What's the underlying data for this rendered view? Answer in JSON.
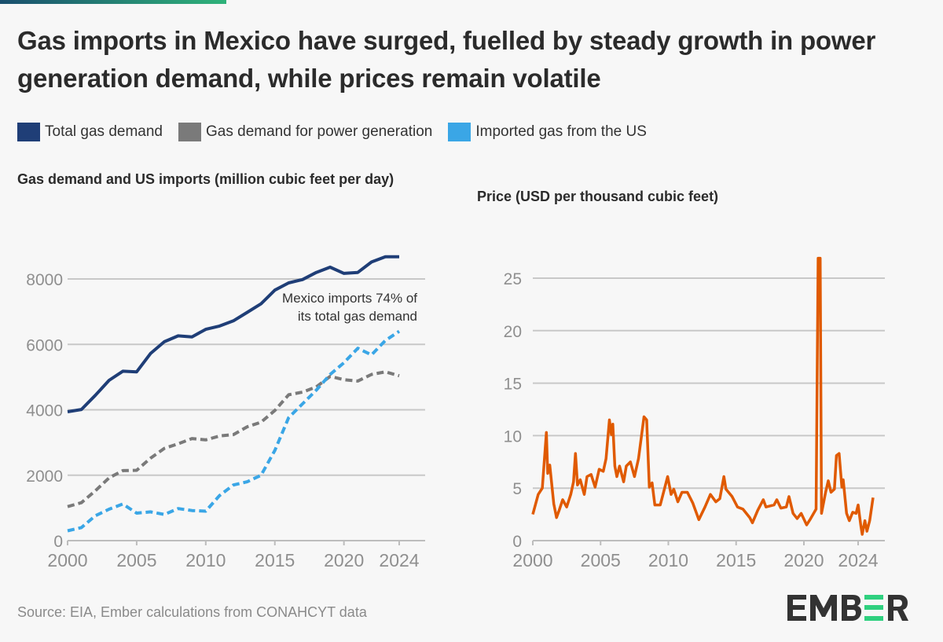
{
  "title": "Gas imports in Mexico have surged, fuelled by steady growth in power generation demand, while prices remain volatile",
  "legend": [
    {
      "label": "Total gas demand",
      "color": "#1f3e77"
    },
    {
      "label": "Gas demand for power generation",
      "color": "#7a7a7a"
    },
    {
      "label": "Imported gas from the US",
      "color": "#3aa6e6"
    }
  ],
  "source": "Source: EIA, Ember calculations from CONAHCYT data",
  "logo": "EMBER",
  "chart_data": [
    {
      "type": "line",
      "title": "Gas demand and US imports (million cubic feet per day)",
      "x": [
        2000,
        2001,
        2002,
        2003,
        2004,
        2005,
        2006,
        2007,
        2008,
        2009,
        2010,
        2011,
        2012,
        2013,
        2014,
        2015,
        2016,
        2017,
        2018,
        2019,
        2020,
        2021,
        2022,
        2023,
        2024
      ],
      "xticks": [
        "2000",
        "2005",
        "2010",
        "2015",
        "2020",
        "2024"
      ],
      "xtick_values": [
        2000,
        2005,
        2010,
        2015,
        2020,
        2024
      ],
      "yticks": [
        "0",
        "2000",
        "4000",
        "6000",
        "8000"
      ],
      "ytick_values": [
        0,
        2000,
        4000,
        6000,
        8000
      ],
      "ylim": [
        0,
        8800
      ],
      "xlim": [
        2000,
        2025.3
      ],
      "grid": true,
      "series": [
        {
          "name": "Total gas demand",
          "color": "#1f3e77",
          "style": "solid",
          "values": [
            3940,
            4010,
            4440,
            4900,
            5180,
            5160,
            5720,
            6080,
            6260,
            6230,
            6460,
            6560,
            6720,
            6980,
            7240,
            7660,
            7880,
            7980,
            8200,
            8360,
            8170,
            8200,
            8520,
            8680,
            8680
          ]
        },
        {
          "name": "Gas demand for power generation",
          "color": "#7a7a7a",
          "style": "dashed",
          "values": [
            1040,
            1160,
            1520,
            1920,
            2140,
            2150,
            2520,
            2820,
            2960,
            3120,
            3080,
            3200,
            3240,
            3480,
            3620,
            3980,
            4460,
            4540,
            4700,
            5020,
            4920,
            4880,
            5080,
            5160,
            5040
          ]
        },
        {
          "name": "Imported gas from the US",
          "color": "#3aa6e6",
          "style": "dashed",
          "values": [
            300,
            400,
            760,
            960,
            1120,
            840,
            880,
            800,
            980,
            920,
            900,
            1380,
            1700,
            1800,
            2000,
            2760,
            3760,
            4180,
            4600,
            5080,
            5440,
            5880,
            5680,
            6120,
            6400
          ]
        }
      ],
      "annotation": [
        "Mexico imports 74% of",
        "its total gas demand"
      ]
    },
    {
      "type": "line",
      "title": "Price (USD per thousand cubic feet)",
      "xticks": [
        "2000",
        "2005",
        "2010",
        "2015",
        "2020",
        "2024"
      ],
      "xtick_values": [
        2000,
        2005,
        2010,
        2015,
        2020,
        2024
      ],
      "yticks": [
        "0",
        "5",
        "10",
        "15",
        "20",
        "25"
      ],
      "ytick_values": [
        0,
        5,
        10,
        15,
        20,
        25
      ],
      "ylim": [
        0,
        27
      ],
      "xlim": [
        2000,
        2025.3
      ],
      "grid": true,
      "series": [
        {
          "color": "#e05a00",
          "style": "solid",
          "points": [
            [
              2000.0,
              2.5
            ],
            [
              2000.4,
              4.4
            ],
            [
              2000.7,
              5.0
            ],
            [
              2001.0,
              10.3
            ],
            [
              2001.1,
              6.4
            ],
            [
              2001.25,
              7.2
            ],
            [
              2001.55,
              3.5
            ],
            [
              2001.75,
              2.2
            ],
            [
              2001.95,
              2.9
            ],
            [
              2002.2,
              3.9
            ],
            [
              2002.5,
              3.2
            ],
            [
              2002.8,
              4.4
            ],
            [
              2003.0,
              5.6
            ],
            [
              2003.15,
              8.3
            ],
            [
              2003.3,
              5.3
            ],
            [
              2003.5,
              5.8
            ],
            [
              2003.8,
              4.4
            ],
            [
              2004.0,
              6.1
            ],
            [
              2004.3,
              6.3
            ],
            [
              2004.6,
              5.1
            ],
            [
              2004.9,
              6.8
            ],
            [
              2005.2,
              6.6
            ],
            [
              2005.4,
              7.8
            ],
            [
              2005.65,
              11.5
            ],
            [
              2005.8,
              10.1
            ],
            [
              2005.9,
              11.1
            ],
            [
              2006.05,
              7.1
            ],
            [
              2006.2,
              6.1
            ],
            [
              2006.4,
              7.1
            ],
            [
              2006.7,
              5.6
            ],
            [
              2006.9,
              7.1
            ],
            [
              2007.2,
              7.5
            ],
            [
              2007.5,
              6.1
            ],
            [
              2007.8,
              7.8
            ],
            [
              2008.2,
              11.8
            ],
            [
              2008.4,
              11.5
            ],
            [
              2008.6,
              5.1
            ],
            [
              2008.8,
              5.5
            ],
            [
              2009.0,
              3.4
            ],
            [
              2009.4,
              3.4
            ],
            [
              2009.95,
              6.1
            ],
            [
              2010.2,
              4.4
            ],
            [
              2010.4,
              4.9
            ],
            [
              2010.7,
              3.7
            ],
            [
              2011.0,
              4.6
            ],
            [
              2011.4,
              4.6
            ],
            [
              2011.8,
              3.6
            ],
            [
              2012.25,
              2.0
            ],
            [
              2012.7,
              3.2
            ],
            [
              2013.1,
              4.4
            ],
            [
              2013.5,
              3.7
            ],
            [
              2013.8,
              4.0
            ],
            [
              2014.1,
              6.1
            ],
            [
              2014.25,
              4.9
            ],
            [
              2014.7,
              4.2
            ],
            [
              2015.1,
              3.2
            ],
            [
              2015.5,
              3.0
            ],
            [
              2016.0,
              2.2
            ],
            [
              2016.2,
              1.7
            ],
            [
              2016.6,
              2.9
            ],
            [
              2017.0,
              3.9
            ],
            [
              2017.2,
              3.2
            ],
            [
              2017.8,
              3.4
            ],
            [
              2018.0,
              3.9
            ],
            [
              2018.3,
              3.1
            ],
            [
              2018.7,
              3.2
            ],
            [
              2018.9,
              4.2
            ],
            [
              2019.2,
              2.6
            ],
            [
              2019.5,
              2.1
            ],
            [
              2019.8,
              2.6
            ],
            [
              2020.2,
              1.5
            ],
            [
              2020.5,
              2.1
            ],
            [
              2020.9,
              3.0
            ],
            [
              2021.05,
              26.9
            ],
            [
              2021.2,
              26.9
            ],
            [
              2021.3,
              2.6
            ],
            [
              2021.6,
              4.6
            ],
            [
              2021.8,
              5.7
            ],
            [
              2022.0,
              4.6
            ],
            [
              2022.25,
              4.9
            ],
            [
              2022.4,
              8.1
            ],
            [
              2022.6,
              8.3
            ],
            [
              2022.8,
              5.1
            ],
            [
              2022.9,
              5.8
            ],
            [
              2023.15,
              2.6
            ],
            [
              2023.35,
              1.9
            ],
            [
              2023.6,
              2.7
            ],
            [
              2023.85,
              2.6
            ],
            [
              2024.0,
              3.4
            ],
            [
              2024.2,
              1.4
            ],
            [
              2024.3,
              0.6
            ],
            [
              2024.5,
              1.9
            ],
            [
              2024.65,
              0.9
            ],
            [
              2024.85,
              1.9
            ],
            [
              2025.1,
              4.1
            ]
          ]
        }
      ]
    }
  ]
}
